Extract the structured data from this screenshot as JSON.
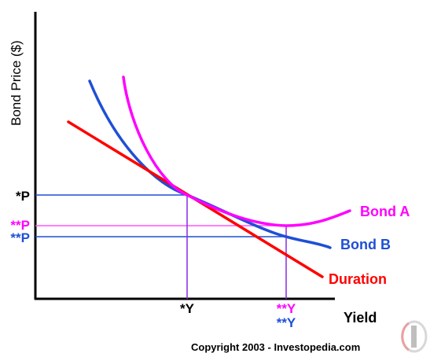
{
  "labels": {
    "y_axis": "Bond Price ($)",
    "x_axis": "Yield",
    "p_star": "*P",
    "p_pink": "**P",
    "p_blue": "**P",
    "y_star": "*Y",
    "y_pink": "**Y",
    "y_blue": "**Y",
    "bond_a": "Bond A",
    "bond_b": "Bond B",
    "duration": "Duration",
    "copyright": "Copyright 2003 - Investopedia.com"
  },
  "colors": {
    "bond_a": "#ff00ff",
    "bond_b": "#1f4fd6",
    "duration": "#ff0000",
    "axis": "#000000",
    "guide_blue": "#1f4fd6",
    "guide_pink": "#ff55ff",
    "guide_purple": "#8a2be2"
  },
  "logo_icon": "investopedia-logo-icon"
}
